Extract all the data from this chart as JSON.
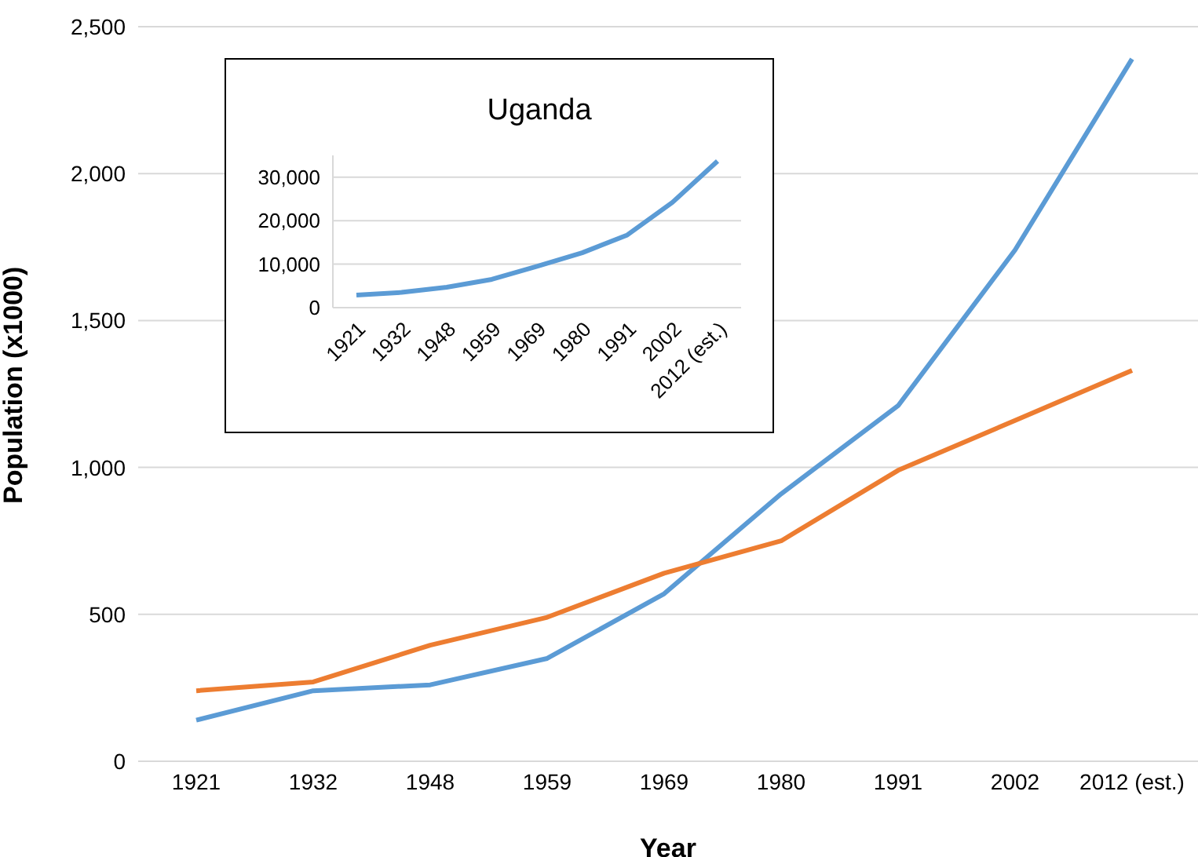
{
  "chart_data": [
    {
      "type": "line",
      "xlabel": "Year",
      "ylabel": "Population (x1000)",
      "categories": [
        "1921",
        "1932",
        "1948",
        "1959",
        "1969",
        "1980",
        "1991",
        "2002",
        "2012 (est.)"
      ],
      "series": [
        {
          "color": "#5b9bd5",
          "values": [
            140,
            240,
            260,
            350,
            570,
            910,
            1210,
            1740,
            2390
          ]
        },
        {
          "color": "#ed7d31",
          "values": [
            240,
            270,
            395,
            490,
            640,
            750,
            990,
            1160,
            1330
          ]
        }
      ],
      "ylim": [
        0,
        2500
      ],
      "yticks": [
        {
          "value": 0,
          "label": "0"
        },
        {
          "value": 500,
          "label": "500"
        },
        {
          "value": 1000,
          "label": "1,000"
        },
        {
          "value": 1500,
          "label": "1,500"
        },
        {
          "value": 2000,
          "label": "2,000"
        },
        {
          "value": 2500,
          "label": "2,500"
        }
      ],
      "grid": "y",
      "legend": false
    },
    {
      "type": "line",
      "title": "Uganda",
      "categories": [
        "1921",
        "1932",
        "1948",
        "1959",
        "1969",
        "1980",
        "1991",
        "2002",
        "2012 (est.)"
      ],
      "series": [
        {
          "color": "#5b9bd5",
          "values": [
            2900,
            3500,
            4700,
            6500,
            9500,
            12600,
            16700,
            24200,
            33700
          ]
        }
      ],
      "ylim": [
        0,
        35000
      ],
      "yticks": [
        {
          "value": 0,
          "label": "0"
        },
        {
          "value": 10000,
          "label": "10,000"
        },
        {
          "value": 20000,
          "label": "20,000"
        },
        {
          "value": 30000,
          "label": "30,000"
        }
      ],
      "grid": "y",
      "legend": false
    }
  ]
}
